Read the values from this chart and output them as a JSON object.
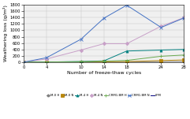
{
  "x": [
    0,
    4,
    10,
    14,
    18,
    24,
    28
  ],
  "series": [
    {
      "label": "M-0 H",
      "color": "#808080",
      "marker": "o",
      "y": [
        0,
        2,
        5,
        8,
        10,
        15,
        20
      ]
    },
    {
      "label": "M-0 N",
      "color": "#b8860b",
      "marker": "s",
      "y": [
        0,
        3,
        8,
        12,
        18,
        50,
        70
      ]
    },
    {
      "label": "M-4 H",
      "color": "#008080",
      "marker": "^",
      "y": [
        0,
        5,
        20,
        40,
        350,
        380,
        400
      ]
    },
    {
      "label": "M-4 N",
      "color": "#c8a0c8",
      "marker": "D",
      "y": [
        0,
        100,
        380,
        580,
        580,
        1130,
        1400
      ]
    },
    {
      "label": "CRM1-BM H",
      "color": "#6aaa50",
      "marker": "+",
      "y": [
        0,
        5,
        15,
        30,
        55,
        185,
        225
      ]
    },
    {
      "label": "CRM1-BM N",
      "color": "#4472c4",
      "marker": "x",
      "y": [
        0,
        140,
        720,
        1380,
        1790,
        1090,
        1390
      ]
    },
    {
      "label": "LPM",
      "color": "#000080",
      "marker": null,
      "y": [
        0,
        0,
        0,
        0,
        0,
        0,
        0
      ]
    }
  ],
  "xlabel": "Number of freeze-thaw cycles",
  "ylabel": "Weathering loss (g/m²)",
  "ylim": [
    0,
    1800
  ],
  "xlim": [
    0,
    28
  ],
  "xticks": [
    0,
    4,
    10,
    14,
    18,
    24,
    28
  ],
  "yticks": [
    0,
    200,
    400,
    600,
    800,
    1000,
    1200,
    1400,
    1600,
    1800
  ],
  "figsize": [
    2.41,
    1.51
  ],
  "dpi": 100,
  "bg_color": "#f0f0f0"
}
